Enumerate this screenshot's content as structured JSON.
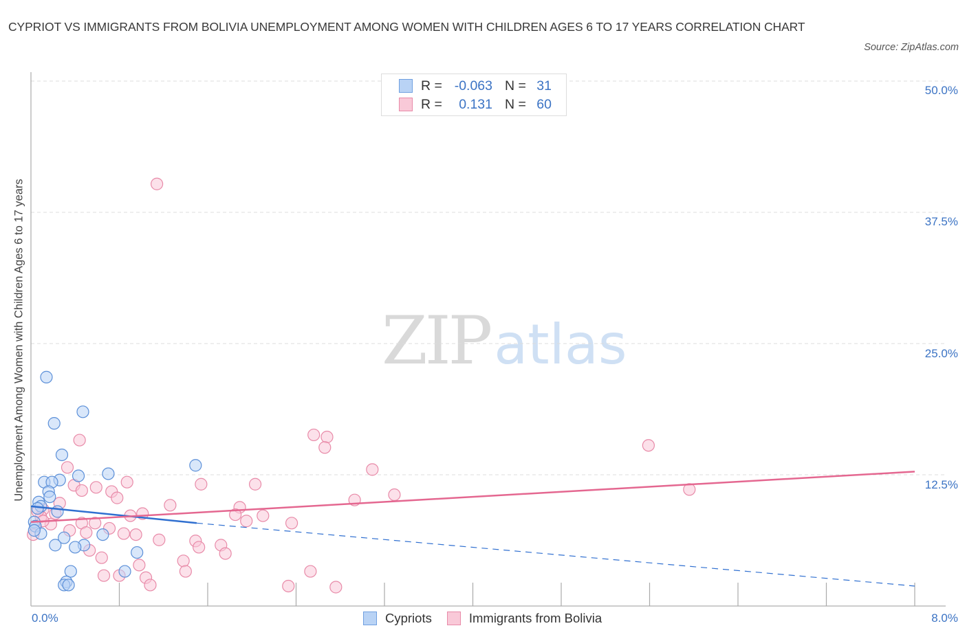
{
  "header": {
    "title": "CYPRIOT VS IMMIGRANTS FROM BOLIVIA UNEMPLOYMENT AMONG WOMEN WITH CHILDREN AGES 6 TO 17 YEARS CORRELATION CHART",
    "source": "Source: ZipAtlas.com"
  },
  "watermark": {
    "zip": "ZIP",
    "atlas": "atlas"
  },
  "legend": {
    "rows": [
      {
        "series": "Cypriots",
        "r_label": "R =",
        "r_value": "-0.063",
        "n_label": "N =",
        "n_value": "31",
        "fill": "#b9d3f5",
        "stroke": "#6f9fe0"
      },
      {
        "series": "Immigrants from Bolivia",
        "r_label": "R =",
        "r_value": "0.131",
        "n_label": "N =",
        "n_value": "60",
        "fill": "#f9c9d8",
        "stroke": "#e88aa8"
      }
    ]
  },
  "bottom_legend": [
    "Cypriots",
    "Immigrants from Bolivia"
  ],
  "axes": {
    "ylabel": "Unemployment Among Women with Children Ages 6 to 17 years",
    "y_ticks": [
      "50.0%",
      "37.5%",
      "25.0%",
      "12.5%"
    ],
    "x_ticks": [
      "0.0%",
      "8.0%"
    ]
  },
  "colors": {
    "blue_fill": "#b9d3f5",
    "blue_stroke": "#5b8fd8",
    "blue_line": "#2f6fd0",
    "pink_fill": "#f9c9d8",
    "pink_stroke": "#e88aa8",
    "pink_line": "#e46790",
    "tick_text": "#3b73c4",
    "grid": "#dddddd"
  },
  "chart_data": {
    "type": "scatter",
    "title": "CYPRIOT VS IMMIGRANTS FROM BOLIVIA UNEMPLOYMENT AMONG WOMEN WITH CHILDREN AGES 6 TO 17 YEARS CORRELATION CHART",
    "xlabel": "",
    "ylabel": "Unemployment Among Women with Children Ages 6 to 17 years",
    "xlim": [
      0,
      8
    ],
    "ylim": [
      0,
      50
    ],
    "x_unit": "%",
    "y_unit": "%",
    "y_ticks": [
      12.5,
      25.0,
      37.5,
      50.0
    ],
    "x_ticks_labeled": [
      0.0,
      8.0
    ],
    "grid": true,
    "legend_position": "top-center and bottom",
    "series": [
      {
        "name": "Cypriots",
        "R": -0.063,
        "N": 31,
        "trend": {
          "x0": 0.0,
          "y0": 9.5,
          "x1": 1.5,
          "y1": 7.9,
          "extrapolated_to": {
            "x": 8.0,
            "y": 1.9
          }
        },
        "points": [
          [
            0.14,
            21.8
          ],
          [
            0.21,
            17.4
          ],
          [
            0.47,
            18.5
          ],
          [
            0.28,
            14.4
          ],
          [
            1.49,
            13.4
          ],
          [
            0.7,
            12.6
          ],
          [
            0.43,
            12.4
          ],
          [
            0.26,
            12.0
          ],
          [
            0.12,
            11.8
          ],
          [
            0.19,
            11.8
          ],
          [
            0.16,
            10.9
          ],
          [
            0.17,
            10.4
          ],
          [
            0.07,
            9.9
          ],
          [
            0.09,
            9.5
          ],
          [
            0.06,
            9.3
          ],
          [
            0.24,
            9.0
          ],
          [
            0.03,
            8.0
          ],
          [
            0.04,
            7.6
          ],
          [
            0.09,
            6.9
          ],
          [
            0.65,
            6.8
          ],
          [
            0.3,
            6.5
          ],
          [
            0.48,
            5.8
          ],
          [
            0.22,
            5.8
          ],
          [
            0.4,
            5.6
          ],
          [
            0.96,
            5.1
          ],
          [
            0.36,
            3.3
          ],
          [
            0.85,
            3.3
          ],
          [
            0.32,
            2.3
          ],
          [
            0.3,
            2.0
          ],
          [
            0.34,
            2.0
          ],
          [
            0.03,
            7.2
          ]
        ]
      },
      {
        "name": "Immigrants from Bolivia",
        "R": 0.131,
        "N": 60,
        "trend": {
          "x0": 0.0,
          "y0": 8.0,
          "x1": 8.0,
          "y1": 12.8
        },
        "points": [
          [
            1.14,
            40.2
          ],
          [
            0.44,
            15.8
          ],
          [
            2.56,
            16.3
          ],
          [
            2.68,
            16.1
          ],
          [
            2.66,
            15.1
          ],
          [
            5.59,
            15.3
          ],
          [
            3.09,
            13.0
          ],
          [
            0.33,
            13.2
          ],
          [
            0.87,
            11.8
          ],
          [
            1.54,
            11.6
          ],
          [
            2.03,
            11.6
          ],
          [
            0.39,
            11.5
          ],
          [
            0.46,
            11.0
          ],
          [
            0.59,
            11.3
          ],
          [
            0.73,
            10.9
          ],
          [
            0.78,
            10.3
          ],
          [
            3.29,
            10.6
          ],
          [
            5.96,
            11.1
          ],
          [
            2.93,
            10.1
          ],
          [
            0.26,
            9.8
          ],
          [
            1.26,
            9.6
          ],
          [
            1.89,
            9.4
          ],
          [
            0.11,
            9.2
          ],
          [
            1.01,
            8.8
          ],
          [
            0.9,
            8.6
          ],
          [
            1.85,
            8.7
          ],
          [
            2.1,
            8.6
          ],
          [
            0.22,
            8.8
          ],
          [
            0.09,
            8.5
          ],
          [
            1.95,
            8.1
          ],
          [
            0.58,
            7.9
          ],
          [
            0.46,
            7.9
          ],
          [
            2.36,
            7.9
          ],
          [
            0.18,
            7.8
          ],
          [
            0.04,
            7.6
          ],
          [
            0.71,
            7.4
          ],
          [
            0.5,
            7.0
          ],
          [
            0.84,
            6.9
          ],
          [
            0.95,
            6.8
          ],
          [
            0.35,
            7.2
          ],
          [
            1.16,
            6.3
          ],
          [
            1.49,
            6.2
          ],
          [
            1.52,
            5.6
          ],
          [
            1.72,
            5.8
          ],
          [
            0.53,
            5.3
          ],
          [
            1.76,
            5.0
          ],
          [
            0.64,
            4.6
          ],
          [
            1.38,
            4.3
          ],
          [
            0.98,
            3.9
          ],
          [
            1.4,
            3.3
          ],
          [
            2.53,
            3.3
          ],
          [
            0.66,
            2.9
          ],
          [
            0.8,
            2.9
          ],
          [
            1.04,
            2.7
          ],
          [
            1.08,
            2.0
          ],
          [
            2.33,
            1.9
          ],
          [
            2.76,
            1.8
          ],
          [
            0.02,
            6.8
          ],
          [
            0.06,
            9.0
          ],
          [
            0.11,
            8.1
          ]
        ]
      }
    ]
  }
}
